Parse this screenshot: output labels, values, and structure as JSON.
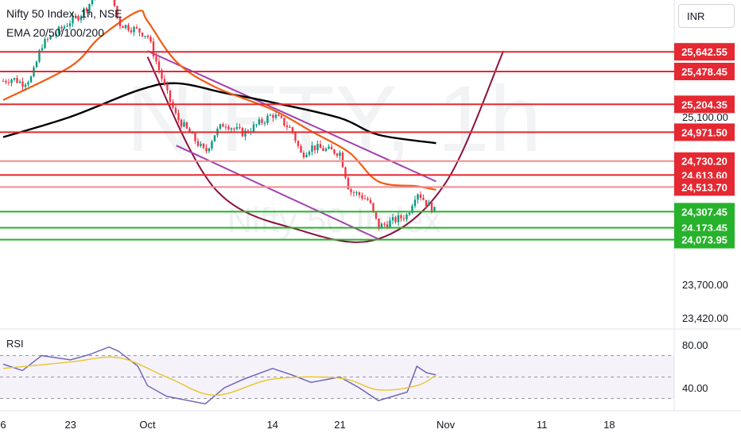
{
  "header": {
    "title": "Nifty 50 Index, 1h, NSE",
    "indicator": "EMA 20/50/100/200"
  },
  "currency_button": "INR",
  "watermark": {
    "big": "NIFTY, 1h",
    "small": "Nifty 50 Index"
  },
  "rsi_label": "RSI",
  "colors": {
    "resistance": "#e52831",
    "resistance_light": "#f08a8f",
    "support": "#26b22b",
    "ema_fast": "#f25c12",
    "ema_slow": "#000000",
    "channel": "#a33fae",
    "cup": "#8a1240",
    "rsi_line": "#6a5fb5",
    "rsi_ma": "#e8c52a"
  },
  "chart_data": [
    {
      "type": "line",
      "title": "Nifty 50 Index, 1h, NSE",
      "y_ticks": [
        {
          "label": "25,100.00",
          "value": 25100
        },
        {
          "label": "23,700.00",
          "value": 23700
        },
        {
          "label": "23,420.00",
          "value": 23420
        }
      ],
      "x_ticks": [
        {
          "label": "6",
          "date": "2024-09-16"
        },
        {
          "label": "23",
          "date": "2024-09-23"
        },
        {
          "label": "Oct",
          "date": "2024-10-01"
        },
        {
          "label": "14",
          "date": "2024-10-14"
        },
        {
          "label": "21",
          "date": "2024-10-21"
        },
        {
          "label": "Nov",
          "date": "2024-11-01"
        },
        {
          "label": "11",
          "date": "2024-11-11"
        },
        {
          "label": "18",
          "date": "2024-11-18"
        }
      ],
      "horizontal_levels": [
        {
          "label": "25,642.55",
          "value": 25642.55,
          "kind": "resistance"
        },
        {
          "label": "25,478.45",
          "value": 25478.45,
          "kind": "resistance"
        },
        {
          "label": "25,204.35",
          "value": 25204.35,
          "kind": "resistance"
        },
        {
          "label": "24,971.50",
          "value": 24971.5,
          "kind": "resistance"
        },
        {
          "label": "24,730.20",
          "value": 24730.2,
          "kind": "resistance_light"
        },
        {
          "label": "24,613.60",
          "value": 24613.6,
          "kind": "resistance"
        },
        {
          "label": "24,513.70",
          "value": 24513.7,
          "kind": "resistance_light"
        },
        {
          "label": "24,307.45",
          "value": 24307.45,
          "kind": "support"
        },
        {
          "label": "24,173.45",
          "value": 24173.45,
          "kind": "support"
        },
        {
          "label": "24,073.95",
          "value": 24073.95,
          "kind": "support"
        }
      ],
      "price_path": [
        {
          "date": "2024-09-16",
          "value": 25400
        },
        {
          "date": "2024-09-17",
          "value": 25420
        },
        {
          "date": "2024-09-18",
          "value": 25380
        },
        {
          "date": "2024-09-19",
          "value": 25430
        },
        {
          "date": "2024-09-20",
          "value": 25700
        },
        {
          "date": "2024-09-23",
          "value": 25900
        },
        {
          "date": "2024-09-24",
          "value": 25950
        },
        {
          "date": "2024-09-25",
          "value": 26050
        },
        {
          "date": "2024-09-26",
          "value": 26250
        },
        {
          "date": "2024-09-27",
          "value": 26220
        },
        {
          "date": "2024-09-28",
          "value": 25880
        },
        {
          "date": "2024-09-30",
          "value": 25820
        },
        {
          "date": "2024-10-01",
          "value": 25780
        },
        {
          "date": "2024-10-03",
          "value": 25300
        },
        {
          "date": "2024-10-04",
          "value": 25100
        },
        {
          "date": "2024-10-07",
          "value": 24800
        },
        {
          "date": "2024-10-08",
          "value": 24960
        },
        {
          "date": "2024-10-09",
          "value": 25050
        },
        {
          "date": "2024-10-10",
          "value": 25000
        },
        {
          "date": "2024-10-11",
          "value": 24960
        },
        {
          "date": "2024-10-14",
          "value": 25120
        },
        {
          "date": "2024-10-15",
          "value": 25060
        },
        {
          "date": "2024-10-16",
          "value": 24990
        },
        {
          "date": "2024-10-17",
          "value": 24780
        },
        {
          "date": "2024-10-18",
          "value": 24850
        },
        {
          "date": "2024-10-21",
          "value": 24800
        },
        {
          "date": "2024-10-22",
          "value": 24480
        },
        {
          "date": "2024-10-23",
          "value": 24450
        },
        {
          "date": "2024-10-24",
          "value": 24400
        },
        {
          "date": "2024-10-25",
          "value": 24180
        },
        {
          "date": "2024-10-28",
          "value": 24280
        },
        {
          "date": "2024-10-29",
          "value": 24480
        },
        {
          "date": "2024-10-30",
          "value": 24380
        },
        {
          "date": "2024-10-31",
          "value": 24300
        }
      ],
      "ema_fast": [
        {
          "date": "2024-09-16",
          "value": 25240
        },
        {
          "date": "2024-09-23",
          "value": 25520
        },
        {
          "date": "2024-09-26",
          "value": 25760
        },
        {
          "date": "2024-09-30",
          "value": 25980
        },
        {
          "date": "2024-10-01",
          "value": 25900
        },
        {
          "date": "2024-10-04",
          "value": 25560
        },
        {
          "date": "2024-10-08",
          "value": 25350
        },
        {
          "date": "2024-10-14",
          "value": 25160
        },
        {
          "date": "2024-10-18",
          "value": 24980
        },
        {
          "date": "2024-10-22",
          "value": 24800
        },
        {
          "date": "2024-10-25",
          "value": 24560
        },
        {
          "date": "2024-10-29",
          "value": 24520
        },
        {
          "date": "2024-10-31",
          "value": 24490
        }
      ],
      "ema_slow": [
        {
          "date": "2024-09-16",
          "value": 24930
        },
        {
          "date": "2024-09-23",
          "value": 25100
        },
        {
          "date": "2024-09-30",
          "value": 25320
        },
        {
          "date": "2024-10-04",
          "value": 25380
        },
        {
          "date": "2024-10-09",
          "value": 25300
        },
        {
          "date": "2024-10-14",
          "value": 25220
        },
        {
          "date": "2024-10-21",
          "value": 25090
        },
        {
          "date": "2024-10-25",
          "value": 24950
        },
        {
          "date": "2024-10-31",
          "value": 24880
        }
      ],
      "channel_lines": [
        {
          "from": {
            "date": "2024-10-01",
            "value": 25650
          },
          "to": {
            "date": "2024-10-31",
            "value": 24560
          }
        },
        {
          "from": {
            "date": "2024-10-04",
            "value": 24860
          },
          "to": {
            "date": "2024-10-25",
            "value": 24080
          }
        }
      ],
      "cup_curve": [
        {
          "date": "2024-10-01",
          "value": 25600
        },
        {
          "date": "2024-10-08",
          "value": 24500
        },
        {
          "date": "2024-10-17",
          "value": 24150
        },
        {
          "date": "2024-10-25",
          "value": 24080
        },
        {
          "date": "2024-11-01",
          "value": 24550
        },
        {
          "date": "2024-11-07",
          "value": 25650
        }
      ]
    },
    {
      "type": "line",
      "title": "RSI",
      "y_ticks": [
        {
          "label": "80.00",
          "value": 80
        },
        {
          "label": "40.00",
          "value": 40
        }
      ],
      "bands": [
        70,
        50,
        30
      ],
      "rsi": [
        {
          "date": "2024-09-16",
          "value": 62
        },
        {
          "date": "2024-09-18",
          "value": 56
        },
        {
          "date": "2024-09-20",
          "value": 70
        },
        {
          "date": "2024-09-23",
          "value": 66
        },
        {
          "date": "2024-09-25",
          "value": 71
        },
        {
          "date": "2024-09-27",
          "value": 78
        },
        {
          "date": "2024-09-28",
          "value": 74
        },
        {
          "date": "2024-09-30",
          "value": 60
        },
        {
          "date": "2024-10-01",
          "value": 42
        },
        {
          "date": "2024-10-03",
          "value": 32
        },
        {
          "date": "2024-10-07",
          "value": 25
        },
        {
          "date": "2024-10-09",
          "value": 40
        },
        {
          "date": "2024-10-11",
          "value": 48
        },
        {
          "date": "2024-10-14",
          "value": 58
        },
        {
          "date": "2024-10-16",
          "value": 52
        },
        {
          "date": "2024-10-18",
          "value": 45
        },
        {
          "date": "2024-10-21",
          "value": 50
        },
        {
          "date": "2024-10-23",
          "value": 40
        },
        {
          "date": "2024-10-25",
          "value": 28
        },
        {
          "date": "2024-10-28",
          "value": 36
        },
        {
          "date": "2024-10-29",
          "value": 60
        },
        {
          "date": "2024-10-30",
          "value": 54
        },
        {
          "date": "2024-10-31",
          "value": 52
        }
      ],
      "rsi_ma": [
        {
          "date": "2024-09-16",
          "value": 58
        },
        {
          "date": "2024-09-23",
          "value": 64
        },
        {
          "date": "2024-09-28",
          "value": 68
        },
        {
          "date": "2024-10-03",
          "value": 50
        },
        {
          "date": "2024-10-08",
          "value": 33
        },
        {
          "date": "2024-10-14",
          "value": 48
        },
        {
          "date": "2024-10-21",
          "value": 49
        },
        {
          "date": "2024-10-25",
          "value": 38
        },
        {
          "date": "2024-10-29",
          "value": 42
        },
        {
          "date": "2024-10-31",
          "value": 52
        }
      ]
    }
  ]
}
